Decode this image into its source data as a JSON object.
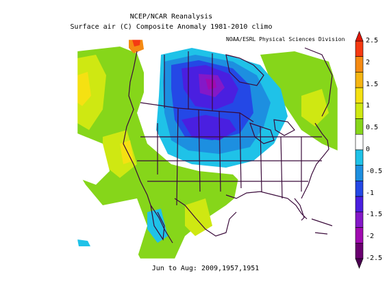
{
  "title": "NCEP/NCAR Reanalysis",
  "subtitle": "Surface air (C) Composite Anomaly 1981-2010 climo",
  "credit": "NOAA/ESRL Physical Sciences Division",
  "footer": "Jun to Aug: 2009,1957,1951",
  "colorbar": {
    "ticks": [
      "2.5",
      "2",
      "1.5",
      "1",
      "0.5",
      "0",
      "-0.5",
      "-1",
      "-1.5",
      "-2",
      "-2.5"
    ],
    "colors": [
      "#f53a12",
      "#f58a12",
      "#f5b512",
      "#f5e112",
      "#cfe812",
      "#86d61a",
      "#ffffff",
      "#1fc2e8",
      "#1d8fe0",
      "#2448e6",
      "#4a1fe0",
      "#8418c8",
      "#a00ab0",
      "#6a0070"
    ]
  }
}
